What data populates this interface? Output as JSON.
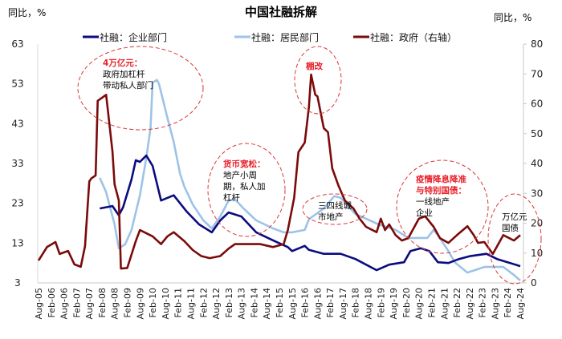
{
  "chart_data": {
    "type": "line",
    "title": "中国社融拆解",
    "ylabel_left": "同比，%",
    "ylabel_right": "同比，%",
    "ylim_left": [
      3,
      63
    ],
    "yticks_left": [
      63,
      53,
      43,
      33,
      23,
      13,
      3
    ],
    "ylim_right": [
      0,
      80
    ],
    "yticks_right": [
      80,
      70,
      60,
      50,
      40,
      30,
      20,
      10,
      0
    ],
    "xlim": [
      "2005-08",
      "2024-08"
    ],
    "xticks": [
      "Aug-05",
      "Feb-06",
      "Aug-06",
      "Feb-07",
      "Aug-07",
      "Feb-08",
      "Aug-08",
      "Feb-09",
      "Aug-09",
      "Feb-10",
      "Aug-10",
      "Feb-11",
      "Aug-11",
      "Feb-12",
      "Aug-12",
      "Feb-13",
      "Aug-13",
      "Feb-14",
      "Aug-14",
      "Feb-15",
      "Aug-15",
      "Feb-16",
      "Aug-16",
      "Feb-17",
      "Aug-17",
      "Feb-18",
      "Aug-18",
      "Feb-19",
      "Aug-19",
      "Feb-20",
      "Aug-20",
      "Feb-21",
      "Aug-21",
      "Feb-22",
      "Aug-22",
      "Feb-23",
      "Aug-23",
      "Feb-24",
      "Aug-24"
    ],
    "grid": false,
    "legend_position": "top",
    "series": [
      {
        "name": "社融：企业部门",
        "axis": "left",
        "color": "#0b0b80",
        "points": [
          [
            "2008-01",
            21.7
          ],
          [
            "2008-04",
            22
          ],
          [
            "2008-07",
            22.3
          ],
          [
            "2008-10",
            20
          ],
          [
            "2008-12",
            22
          ],
          [
            "2009-04",
            29
          ],
          [
            "2009-06",
            33.8
          ],
          [
            "2009-08",
            33.4
          ],
          [
            "2009-11",
            35
          ],
          [
            "2010-02",
            32.4
          ],
          [
            "2010-06",
            23.7
          ],
          [
            "2010-12",
            25
          ],
          [
            "2011-06",
            21
          ],
          [
            "2011-12",
            17.7
          ],
          [
            "2012-06",
            15.7
          ],
          [
            "2012-10",
            18.7
          ],
          [
            "2013-02",
            20.7
          ],
          [
            "2013-08",
            19.7
          ],
          [
            "2014-03",
            15.7
          ],
          [
            "2014-11",
            13.7
          ],
          [
            "2015-06",
            12
          ],
          [
            "2015-08",
            11
          ],
          [
            "2016-02",
            12.3
          ],
          [
            "2016-04",
            11.3
          ],
          [
            "2016-11",
            10.3
          ],
          [
            "2017-07",
            10.3
          ],
          [
            "2018-02",
            9
          ],
          [
            "2018-12",
            6.2
          ],
          [
            "2019-06",
            7.6
          ],
          [
            "2020-01",
            8.2
          ],
          [
            "2020-04",
            11
          ],
          [
            "2020-09",
            11.7
          ],
          [
            "2021-01",
            11
          ],
          [
            "2021-05",
            8.2
          ],
          [
            "2021-10",
            8
          ],
          [
            "2022-03",
            9
          ],
          [
            "2022-08",
            9.7
          ],
          [
            "2023-04",
            10.3
          ],
          [
            "2023-09",
            9
          ],
          [
            "2024-02",
            8.2
          ],
          [
            "2024-08",
            7.2
          ]
        ]
      },
      {
        "name": "社融：居民部门",
        "axis": "left",
        "color": "#9dc3e6",
        "points": [
          [
            "2008-01",
            29.4
          ],
          [
            "2008-04",
            25.8
          ],
          [
            "2008-08",
            17.7
          ],
          [
            "2008-10",
            11.7
          ],
          [
            "2009-01",
            12.7
          ],
          [
            "2009-04",
            16.3
          ],
          [
            "2009-08",
            25
          ],
          [
            "2009-11",
            34.4
          ],
          [
            "2010-01",
            41.9
          ],
          [
            "2010-02",
            53.3
          ],
          [
            "2010-04",
            54
          ],
          [
            "2010-05",
            53
          ],
          [
            "2010-09",
            44.5
          ],
          [
            "2010-12",
            38.4
          ],
          [
            "2011-03",
            30.4
          ],
          [
            "2011-05",
            27.2
          ],
          [
            "2011-09",
            22.7
          ],
          [
            "2012-02",
            18.7
          ],
          [
            "2012-06",
            16.7
          ],
          [
            "2012-10",
            19.7
          ],
          [
            "2013-02",
            23.7
          ],
          [
            "2013-05",
            24
          ],
          [
            "2013-09",
            21.7
          ],
          [
            "2014-03",
            18.7
          ],
          [
            "2014-11",
            16.7
          ],
          [
            "2015-04",
            15.7
          ],
          [
            "2015-08",
            15.7
          ],
          [
            "2016-02",
            16.3
          ],
          [
            "2016-04",
            19
          ],
          [
            "2016-11",
            21.7
          ],
          [
            "2017-04",
            24.8
          ],
          [
            "2017-07",
            24.4
          ],
          [
            "2018-02",
            20.3
          ],
          [
            "2019-01",
            17.7
          ],
          [
            "2019-09",
            16.3
          ],
          [
            "2020-03",
            14.3
          ],
          [
            "2020-12",
            14.3
          ],
          [
            "2021-03",
            16.3
          ],
          [
            "2021-05",
            15
          ],
          [
            "2021-10",
            11
          ],
          [
            "2022-01",
            8.2
          ],
          [
            "2022-07",
            5.6
          ],
          [
            "2023-03",
            7
          ],
          [
            "2023-12",
            7
          ],
          [
            "2024-05",
            5
          ],
          [
            "2024-08",
            3.6
          ]
        ]
      },
      {
        "name": "社融：政府（右轴）",
        "axis": "right",
        "color": "#7b0a0a",
        "points": [
          [
            "2005-08",
            7.5
          ],
          [
            "2005-12",
            12
          ],
          [
            "2006-04",
            13.7
          ],
          [
            "2006-06",
            9.7
          ],
          [
            "2006-10",
            10.7
          ],
          [
            "2007-01",
            6.2
          ],
          [
            "2007-04",
            5.4
          ],
          [
            "2007-06",
            12.3
          ],
          [
            "2007-08",
            34
          ],
          [
            "2007-09",
            35
          ],
          [
            "2007-11",
            36
          ],
          [
            "2007-12",
            61
          ],
          [
            "2008-04",
            63
          ],
          [
            "2008-07",
            44
          ],
          [
            "2008-08",
            33
          ],
          [
            "2008-10",
            27.6
          ],
          [
            "2008-11",
            4.8
          ],
          [
            "2009-02",
            5
          ],
          [
            "2009-06",
            14
          ],
          [
            "2009-08",
            17.7
          ],
          [
            "2010-02",
            15.6
          ],
          [
            "2010-06",
            13
          ],
          [
            "2010-09",
            15.6
          ],
          [
            "2010-12",
            17
          ],
          [
            "2011-05",
            14
          ],
          [
            "2011-09",
            11
          ],
          [
            "2012-01",
            9
          ],
          [
            "2012-05",
            8.3
          ],
          [
            "2012-10",
            9
          ],
          [
            "2013-02",
            11.5
          ],
          [
            "2013-05",
            13
          ],
          [
            "2013-11",
            13
          ],
          [
            "2014-05",
            13
          ],
          [
            "2014-11",
            12
          ],
          [
            "2015-04",
            13
          ],
          [
            "2015-06",
            17.7
          ],
          [
            "2015-09",
            28.5
          ],
          [
            "2015-11",
            43.8
          ],
          [
            "2016-02",
            47
          ],
          [
            "2016-04",
            59
          ],
          [
            "2016-05",
            69.8
          ],
          [
            "2016-07",
            63
          ],
          [
            "2016-08",
            62.5
          ],
          [
            "2016-11",
            51.8
          ],
          [
            "2017-01",
            50.5
          ],
          [
            "2017-03",
            38.4
          ],
          [
            "2017-06",
            32.5
          ],
          [
            "2017-09",
            27.6
          ],
          [
            "2018-01",
            25
          ],
          [
            "2018-04",
            21.5
          ],
          [
            "2018-07",
            18.8
          ],
          [
            "2018-12",
            17
          ],
          [
            "2019-02",
            21.5
          ],
          [
            "2019-04",
            17.7
          ],
          [
            "2019-06",
            19.6
          ],
          [
            "2019-09",
            16
          ],
          [
            "2019-12",
            14.2
          ],
          [
            "2020-03",
            15
          ],
          [
            "2020-08",
            21.5
          ],
          [
            "2020-11",
            22.3
          ],
          [
            "2021-03",
            18.8
          ],
          [
            "2021-06",
            15
          ],
          [
            "2021-10",
            13.4
          ],
          [
            "2022-02",
            16
          ],
          [
            "2022-07",
            19
          ],
          [
            "2022-10",
            16
          ],
          [
            "2022-12",
            13.4
          ],
          [
            "2023-03",
            13.7
          ],
          [
            "2023-07",
            9.7
          ],
          [
            "2023-12",
            16
          ],
          [
            "2024-05",
            14.2
          ],
          [
            "2024-08",
            16
          ]
        ]
      }
    ],
    "annotations": [
      {
        "lines": [
          {
            "text": "4万亿元：",
            "color": "#e8202a"
          },
          {
            "text": "政府加杠杆",
            "color": "#000000"
          },
          {
            "text": "带动私人部门",
            "color": "#000000"
          }
        ]
      },
      {
        "lines": [
          {
            "text": "货币宽松：",
            "color": "#e8202a"
          },
          {
            "text": "地产小周",
            "color": "#000000"
          },
          {
            "text": "期，私人加",
            "color": "#000000"
          },
          {
            "text": "杠杆",
            "color": "#000000"
          }
        ]
      },
      {
        "lines": [
          {
            "text": "棚改",
            "color": "#e8202a"
          }
        ]
      },
      {
        "lines": [
          {
            "text": "三四线城",
            "color": "#000000"
          },
          {
            "text": "市地产",
            "color": "#000000"
          }
        ]
      },
      {
        "lines": [
          {
            "text": "疫情降息降准",
            "color": "#e8202a"
          },
          {
            "text": "与特别国债：",
            "color": "#e8202a"
          },
          {
            "text": "一线地产",
            "color": "#000000"
          },
          {
            "text": "企业",
            "color": "#000000"
          }
        ]
      },
      {
        "lines": [
          {
            "text": "万亿元",
            "color": "#000000"
          },
          {
            "text": "国债",
            "color": "#000000"
          }
        ]
      }
    ],
    "annotation_ellipse_color": "#d9383a"
  }
}
